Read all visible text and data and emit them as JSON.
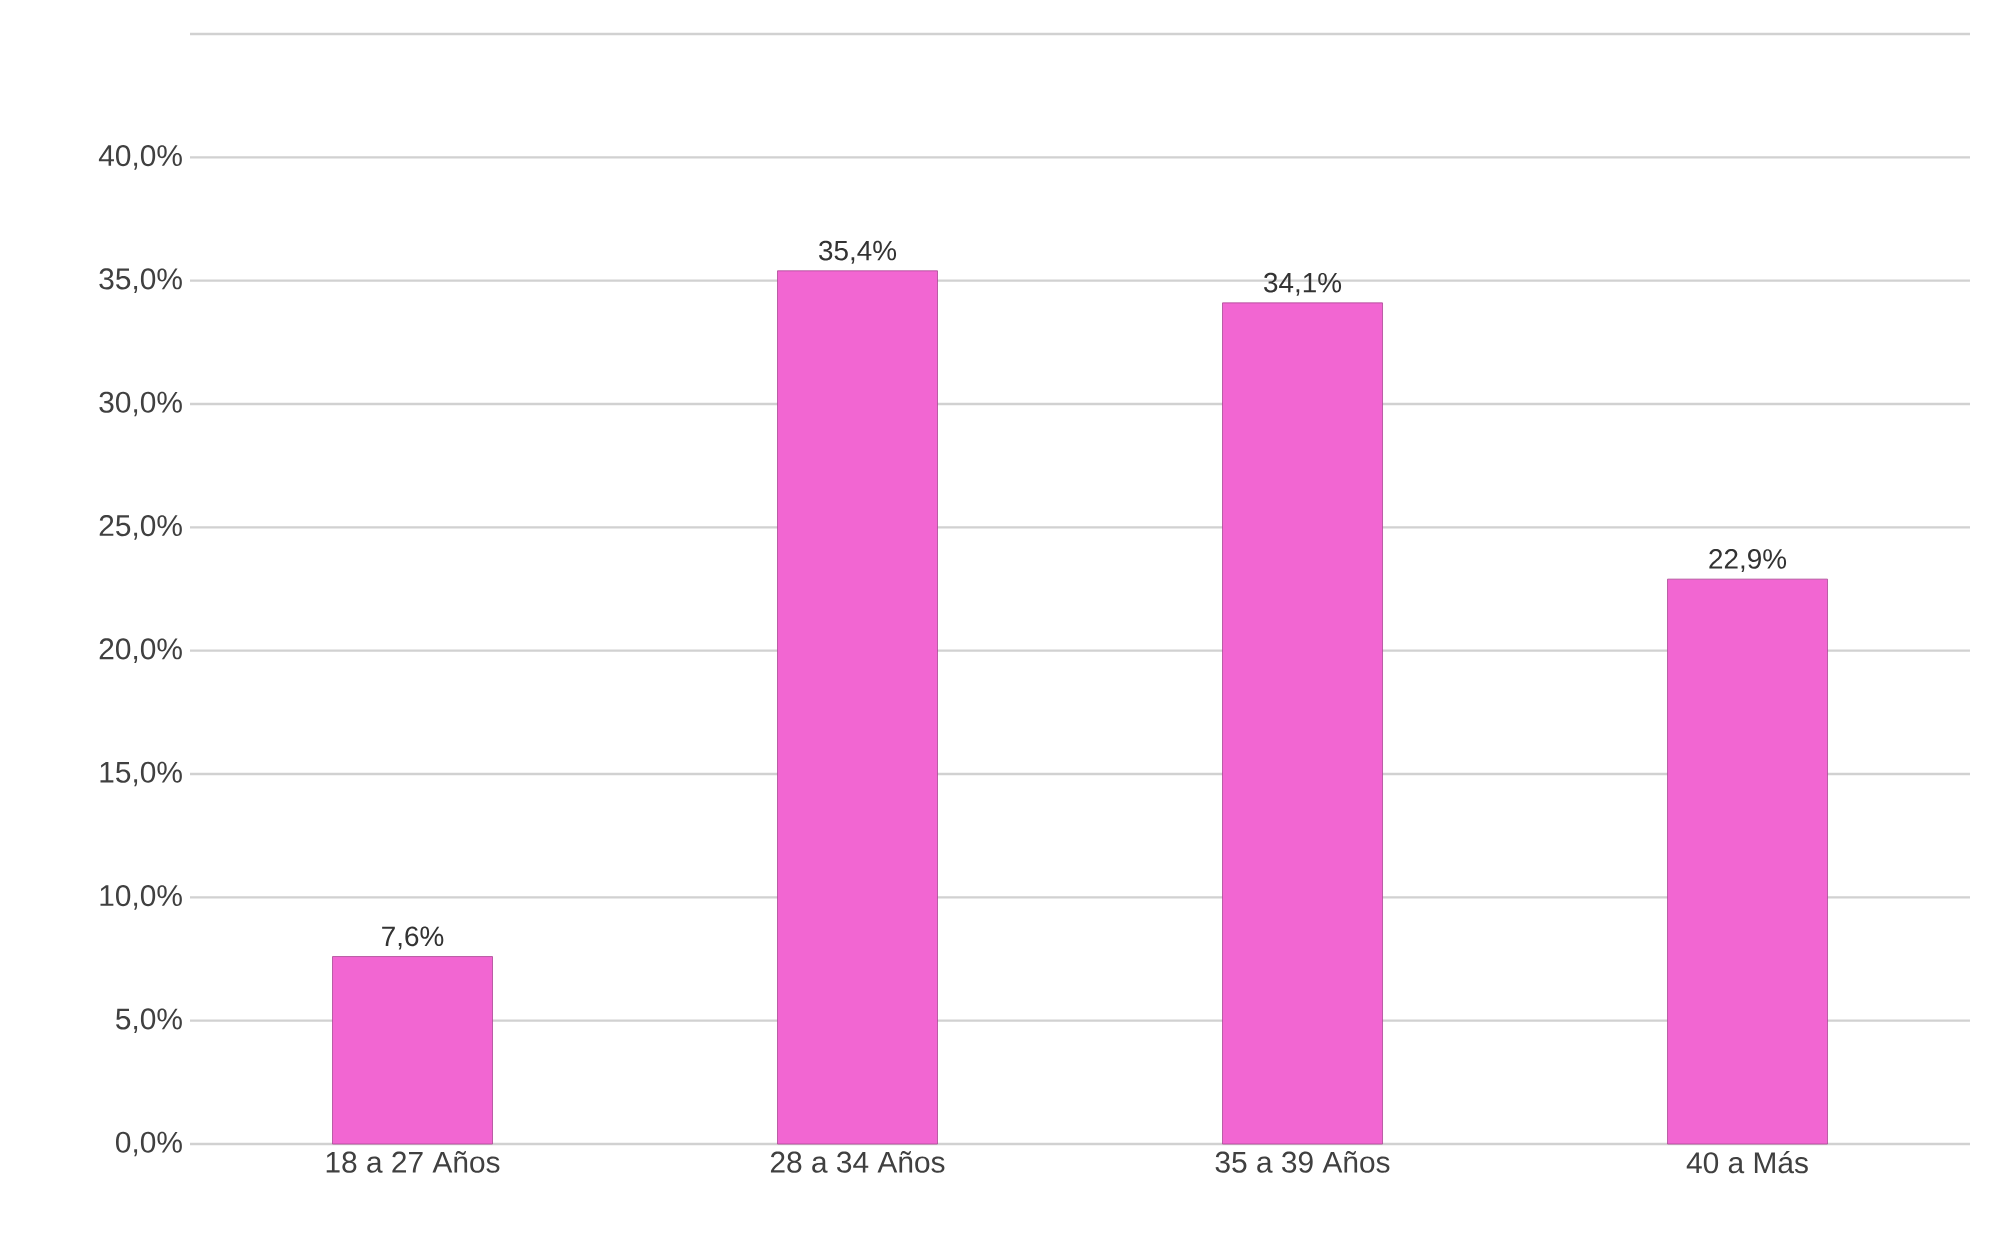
{
  "chart_data": {
    "type": "bar",
    "categories": [
      "18 a 27 Años",
      "28 a 34 Años",
      "35 a 39 Años",
      "40 a Más"
    ],
    "values": [
      7.6,
      35.4,
      34.1,
      22.9
    ],
    "value_labels": [
      "7,6%",
      "35,4%",
      "34,1%",
      "22,9%"
    ],
    "color": "#f266d2",
    "ylim": [
      0,
      45
    ],
    "yticks": [
      {
        "value": 0,
        "label": "0,0%"
      },
      {
        "value": 5,
        "label": "5,0%"
      },
      {
        "value": 10,
        "label": "10,0%"
      },
      {
        "value": 15,
        "label": "15,0%"
      },
      {
        "value": 20,
        "label": "20,0%"
      },
      {
        "value": 25,
        "label": "25,0%"
      },
      {
        "value": 30,
        "label": "30,0%"
      },
      {
        "value": 35,
        "label": "35,0%"
      },
      {
        "value": 40,
        "label": "40,0%"
      },
      {
        "value": 45,
        "label": null
      }
    ],
    "grid": "y"
  }
}
